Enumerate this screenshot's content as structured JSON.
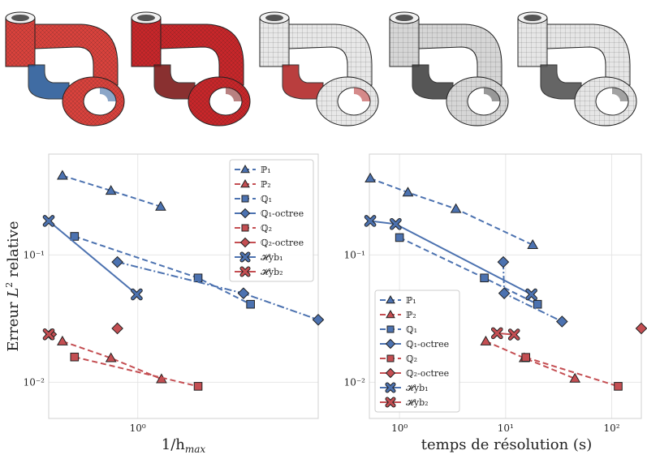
{
  "thumbnails": [
    {
      "name": "p1-mesh-thumbnail",
      "fill": "#d9423c",
      "shade": "#2c5d9a"
    },
    {
      "name": "p2-mesh-thumbnail",
      "fill": "#c8262a",
      "shade": "#7d1a1a"
    },
    {
      "name": "q1-mesh-thumbnail",
      "fill": "#e8e8e8",
      "shade": "#b22a2a"
    },
    {
      "name": "q1-octree-mesh-thumbnail",
      "fill": "#d6d6d6",
      "shade": "#444444"
    },
    {
      "name": "hyb-mesh-thumbnail",
      "fill": "#e6e6e6",
      "shade": "#555555"
    }
  ],
  "legend_labels": [
    "ℙ₁",
    "ℙ₂",
    "ℚ₁",
    "ℚ₁-octree",
    "ℚ₂",
    "ℚ₂-octree",
    "𝓗yb₁",
    "𝓗yb₂"
  ],
  "colors": {
    "blue": "#4c72b0",
    "red": "#c44e52",
    "grid": "#e6e6e6",
    "frame": "#d0d0d0"
  },
  "chart_data": [
    {
      "type": "line",
      "xscale": "log",
      "yscale": "log",
      "xlabel": "1/h_max",
      "ylabel": "Erreur L² relative",
      "xlim": [
        0.42,
        5.8
      ],
      "ylim": [
        0.0052,
        0.62
      ],
      "xticks": [
        {
          "value": 1,
          "label": "10⁰"
        }
      ],
      "yticks": [
        {
          "value": 0.01,
          "label": "10⁻²"
        },
        {
          "value": 0.1,
          "label": "10⁻¹"
        }
      ],
      "grid": true,
      "legend_position": "top-right",
      "series": [
        {
          "name": "ℙ₁",
          "color": "#4c72b0",
          "marker": "triangle",
          "dash": "dashed",
          "x": [
            0.48,
            0.77,
            1.25
          ],
          "y": [
            0.42,
            0.32,
            0.24
          ]
        },
        {
          "name": "ℙ₂",
          "color": "#c44e52",
          "marker": "triangle",
          "dash": "dashed",
          "x": [
            0.48,
            0.77,
            1.26
          ],
          "y": [
            0.021,
            0.0155,
            0.0106
          ]
        },
        {
          "name": "ℚ₁",
          "color": "#4c72b0",
          "marker": "square",
          "dash": "dashed",
          "x": [
            0.54,
            1.8,
            3.0
          ],
          "y": [
            0.14,
            0.066,
            0.041
          ]
        },
        {
          "name": "ℚ₁-octree",
          "color": "#4c72b0",
          "marker": "diamond",
          "dash": "dashdot",
          "x": [
            0.82,
            2.8,
            5.8
          ],
          "y": [
            0.088,
            0.05,
            0.031
          ]
        },
        {
          "name": "ℚ₂",
          "color": "#c44e52",
          "marker": "square",
          "dash": "dashed",
          "x": [
            0.54,
            1.8
          ],
          "y": [
            0.0158,
            0.0093
          ]
        },
        {
          "name": "ℚ₂-octree",
          "color": "#c44e52",
          "marker": "diamond",
          "dash": "none",
          "x": [
            0.43,
            0.82
          ],
          "y": [
            0.0238,
            0.0265
          ]
        },
        {
          "name": "𝓗yb₁",
          "color": "#4c72b0",
          "marker": "x",
          "dash": "solid",
          "x": [
            0.42,
            0.99
          ],
          "y": [
            0.185,
            0.049
          ]
        },
        {
          "name": "𝓗yb₂",
          "color": "#c44e52",
          "marker": "x",
          "dash": "none",
          "x": [
            0.42
          ],
          "y": [
            0.0238
          ]
        }
      ]
    },
    {
      "type": "line",
      "xscale": "log",
      "yscale": "log",
      "xlabel": "temps de résolution (s)",
      "ylabel": "",
      "xlim": [
        0.52,
        190
      ],
      "ylim": [
        0.0052,
        0.62
      ],
      "xticks": [
        {
          "value": 1,
          "label": "10⁰"
        },
        {
          "value": 10,
          "label": "10¹"
        },
        {
          "value": 100,
          "label": "10²"
        }
      ],
      "yticks": [
        {
          "value": 0.01,
          "label": "10⁻²"
        },
        {
          "value": 0.1,
          "label": "10⁻¹"
        }
      ],
      "grid": true,
      "legend_position": "bottom-left",
      "series": [
        {
          "name": "ℙ₁",
          "color": "#4c72b0",
          "marker": "triangle",
          "dash": "dashed",
          "x": [
            0.53,
            1.2,
            3.4,
            18
          ],
          "y": [
            0.4,
            0.31,
            0.23,
            0.12
          ]
        },
        {
          "name": "ℙ₂",
          "color": "#c44e52",
          "marker": "triangle",
          "dash": "dashed",
          "x": [
            6.5,
            15,
            45
          ],
          "y": [
            0.021,
            0.0155,
            0.0107
          ]
        },
        {
          "name": "ℚ₁",
          "color": "#4c72b0",
          "marker": "square",
          "dash": "dashed",
          "x": [
            1.0,
            6.3,
            20
          ],
          "y": [
            0.137,
            0.066,
            0.041
          ]
        },
        {
          "name": "ℚ₁-octree",
          "color": "#4c72b0",
          "marker": "diamond",
          "dash": "dashdot",
          "x": [
            9.5,
            9.7,
            34
          ],
          "y": [
            0.088,
            0.05,
            0.03
          ]
        },
        {
          "name": "ℚ₂",
          "color": "#c44e52",
          "marker": "square",
          "dash": "dashed",
          "x": [
            15.5,
            115
          ],
          "y": [
            0.0157,
            0.0093
          ]
        },
        {
          "name": "ℚ₂-octree",
          "color": "#c44e52",
          "marker": "diamond",
          "dash": "none",
          "x": [
            190
          ],
          "y": [
            0.0265
          ]
        },
        {
          "name": "𝓗yb₁",
          "color": "#4c72b0",
          "marker": "x",
          "dash": "solid",
          "x": [
            0.53,
            0.92,
            17.5
          ],
          "y": [
            0.185,
            0.175,
            0.049
          ]
        },
        {
          "name": "𝓗yb₂",
          "color": "#c44e52",
          "marker": "x",
          "dash": "solid",
          "x": [
            8.3,
            12
          ],
          "y": [
            0.0243,
            0.0237
          ]
        }
      ]
    }
  ]
}
